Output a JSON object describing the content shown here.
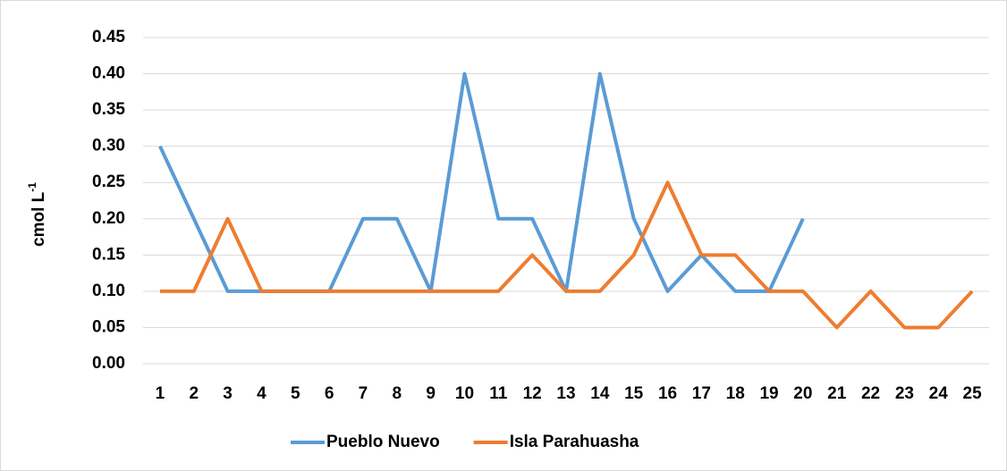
{
  "chart_data": {
    "type": "line",
    "y_label": "cmol L",
    "y_label_sup": "-1",
    "categories": [
      "1",
      "2",
      "3",
      "4",
      "5",
      "6",
      "7",
      "8",
      "9",
      "10",
      "11",
      "12",
      "13",
      "14",
      "15",
      "16",
      "17",
      "18",
      "19",
      "20",
      "21",
      "22",
      "23",
      "24",
      "25"
    ],
    "series": [
      {
        "name": "Pueblo Nuevo",
        "color": "#5b9bd5",
        "values": [
          0.3,
          0.2,
          0.1,
          0.1,
          0.1,
          0.1,
          0.2,
          0.2,
          0.1,
          0.4,
          0.2,
          0.2,
          0.1,
          0.4,
          0.2,
          0.1,
          0.15,
          0.1,
          0.1,
          0.2,
          null,
          null,
          null,
          null,
          null
        ]
      },
      {
        "name": "Isla Parahuasha",
        "color": "#ed7d31",
        "values": [
          0.1,
          0.1,
          0.2,
          0.1,
          0.1,
          0.1,
          0.1,
          0.1,
          0.1,
          0.1,
          0.1,
          0.15,
          0.1,
          0.1,
          0.15,
          0.25,
          0.15,
          0.15,
          0.1,
          0.1,
          0.05,
          0.1,
          0.05,
          0.05,
          0.1
        ]
      }
    ],
    "ylim": [
      0,
      0.45
    ],
    "yticks": [
      {
        "value": 0,
        "label": "0.00"
      },
      {
        "value": 0.05,
        "label": "0.05"
      },
      {
        "value": 0.1,
        "label": "0.10"
      },
      {
        "value": 0.15,
        "label": "0.15"
      },
      {
        "value": 0.2,
        "label": "0.20"
      },
      {
        "value": 0.25,
        "label": "0.25"
      },
      {
        "value": 0.3,
        "label": "0.30"
      },
      {
        "value": 0.35,
        "label": "0.35"
      },
      {
        "value": 0.4,
        "label": "0.40"
      },
      {
        "value": 0.45,
        "label": "0.45"
      }
    ],
    "grid": true,
    "legend": "bottom"
  }
}
